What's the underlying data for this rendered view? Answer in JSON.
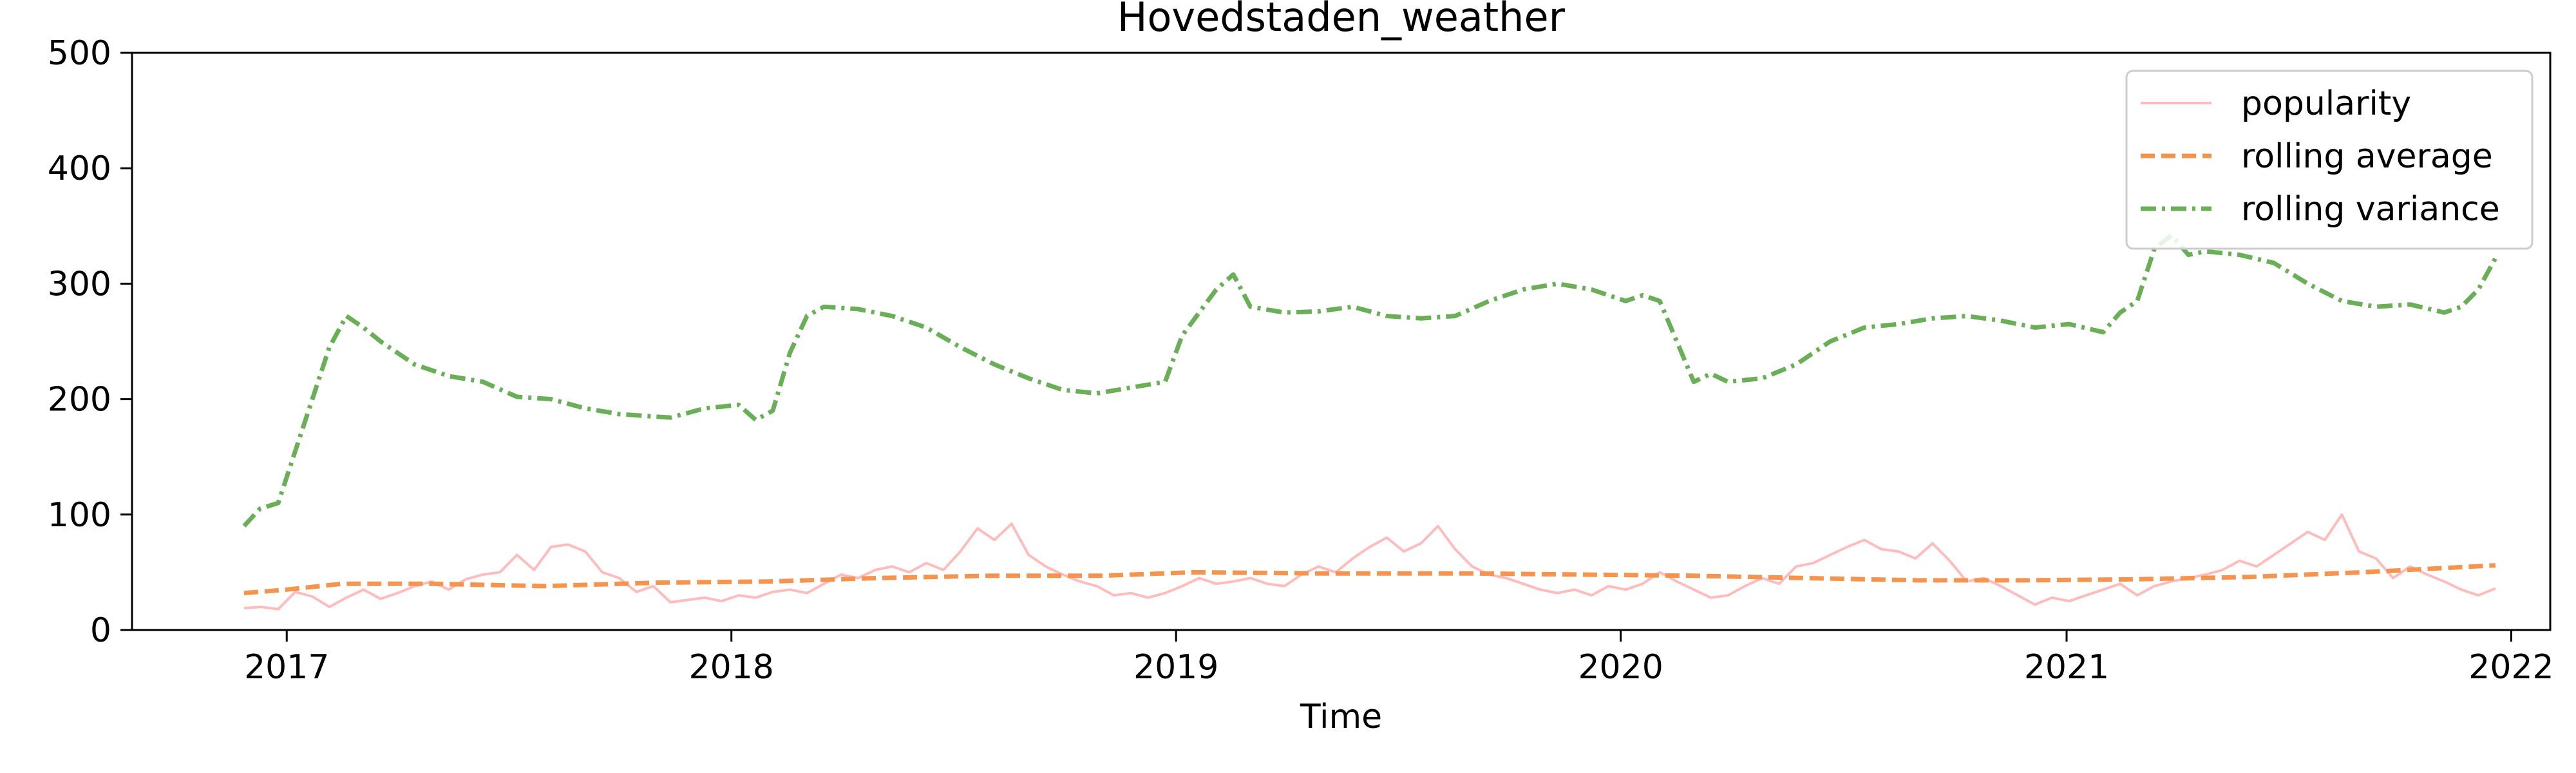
{
  "chart_data": {
    "type": "line",
    "title": "Hovedstaden_weather",
    "xlabel": "Time",
    "ylabel": "",
    "xlim": [
      "2016-08-27",
      "2022-02-02"
    ],
    "ylim": [
      0,
      500
    ],
    "x_ticks": [
      "2017-01-01",
      "2018-01-01",
      "2019-01-01",
      "2020-01-01",
      "2021-01-01",
      "2022-01-01"
    ],
    "x_tick_labels": [
      "2017",
      "2018",
      "2019",
      "2020",
      "2021",
      "2022"
    ],
    "y_ticks": [
      0,
      100,
      200,
      300,
      400,
      500
    ],
    "y_tick_labels": [
      "0",
      "100",
      "200",
      "300",
      "400",
      "500"
    ],
    "grid": false,
    "legend_position": "top-right",
    "series": [
      {
        "name": "popularity",
        "color": "#ffbcbc",
        "style": "solid",
        "points": [
          [
            "2016-11-27",
            19
          ],
          [
            "2016-12-11",
            20
          ],
          [
            "2016-12-25",
            18
          ],
          [
            "2017-01-08",
            33
          ],
          [
            "2017-01-22",
            29
          ],
          [
            "2017-02-05",
            20
          ],
          [
            "2017-02-19",
            28
          ],
          [
            "2017-03-05",
            35
          ],
          [
            "2017-03-19",
            27
          ],
          [
            "2017-04-02",
            32
          ],
          [
            "2017-04-16",
            38
          ],
          [
            "2017-04-30",
            42
          ],
          [
            "2017-05-14",
            35
          ],
          [
            "2017-05-28",
            44
          ],
          [
            "2017-06-11",
            48
          ],
          [
            "2017-06-25",
            50
          ],
          [
            "2017-07-09",
            65
          ],
          [
            "2017-07-23",
            52
          ],
          [
            "2017-08-06",
            72
          ],
          [
            "2017-08-20",
            74
          ],
          [
            "2017-09-03",
            68
          ],
          [
            "2017-09-17",
            50
          ],
          [
            "2017-10-01",
            45
          ],
          [
            "2017-10-15",
            33
          ],
          [
            "2017-10-29",
            38
          ],
          [
            "2017-11-12",
            24
          ],
          [
            "2017-11-26",
            26
          ],
          [
            "2017-12-10",
            28
          ],
          [
            "2017-12-24",
            25
          ],
          [
            "2018-01-07",
            30
          ],
          [
            "2018-01-21",
            28
          ],
          [
            "2018-02-04",
            33
          ],
          [
            "2018-02-18",
            35
          ],
          [
            "2018-03-04",
            32
          ],
          [
            "2018-03-18",
            40
          ],
          [
            "2018-04-01",
            48
          ],
          [
            "2018-04-15",
            45
          ],
          [
            "2018-04-29",
            52
          ],
          [
            "2018-05-13",
            55
          ],
          [
            "2018-05-27",
            50
          ],
          [
            "2018-06-10",
            58
          ],
          [
            "2018-06-24",
            52
          ],
          [
            "2018-07-08",
            68
          ],
          [
            "2018-07-22",
            88
          ],
          [
            "2018-08-05",
            78
          ],
          [
            "2018-08-19",
            92
          ],
          [
            "2018-09-02",
            65
          ],
          [
            "2018-09-16",
            55
          ],
          [
            "2018-09-30",
            48
          ],
          [
            "2018-10-14",
            42
          ],
          [
            "2018-10-28",
            38
          ],
          [
            "2018-11-11",
            30
          ],
          [
            "2018-11-25",
            32
          ],
          [
            "2018-12-09",
            28
          ],
          [
            "2018-12-23",
            32
          ],
          [
            "2019-01-06",
            38
          ],
          [
            "2019-01-20",
            45
          ],
          [
            "2019-02-03",
            40
          ],
          [
            "2019-02-17",
            42
          ],
          [
            "2019-03-03",
            45
          ],
          [
            "2019-03-17",
            40
          ],
          [
            "2019-03-31",
            38
          ],
          [
            "2019-04-14",
            48
          ],
          [
            "2019-04-28",
            55
          ],
          [
            "2019-05-12",
            50
          ],
          [
            "2019-05-26",
            62
          ],
          [
            "2019-06-09",
            72
          ],
          [
            "2019-06-23",
            80
          ],
          [
            "2019-07-07",
            68
          ],
          [
            "2019-07-21",
            75
          ],
          [
            "2019-08-04",
            90
          ],
          [
            "2019-08-18",
            70
          ],
          [
            "2019-09-01",
            55
          ],
          [
            "2019-09-15",
            48
          ],
          [
            "2019-09-29",
            45
          ],
          [
            "2019-10-13",
            40
          ],
          [
            "2019-10-27",
            35
          ],
          [
            "2019-11-10",
            32
          ],
          [
            "2019-11-24",
            35
          ],
          [
            "2019-12-08",
            30
          ],
          [
            "2019-12-22",
            38
          ],
          [
            "2020-01-05",
            35
          ],
          [
            "2020-01-19",
            40
          ],
          [
            "2020-02-02",
            50
          ],
          [
            "2020-02-16",
            42
          ],
          [
            "2020-03-01",
            35
          ],
          [
            "2020-03-15",
            28
          ],
          [
            "2020-03-29",
            30
          ],
          [
            "2020-04-12",
            38
          ],
          [
            "2020-04-26",
            45
          ],
          [
            "2020-05-10",
            40
          ],
          [
            "2020-05-24",
            55
          ],
          [
            "2020-06-07",
            58
          ],
          [
            "2020-06-21",
            65
          ],
          [
            "2020-07-05",
            72
          ],
          [
            "2020-07-19",
            78
          ],
          [
            "2020-08-02",
            70
          ],
          [
            "2020-08-16",
            68
          ],
          [
            "2020-08-30",
            62
          ],
          [
            "2020-09-13",
            75
          ],
          [
            "2020-09-27",
            60
          ],
          [
            "2020-10-11",
            42
          ],
          [
            "2020-10-25",
            45
          ],
          [
            "2020-11-08",
            38
          ],
          [
            "2020-11-22",
            30
          ],
          [
            "2020-12-06",
            22
          ],
          [
            "2020-12-20",
            28
          ],
          [
            "2021-01-03",
            25
          ],
          [
            "2021-01-17",
            30
          ],
          [
            "2021-01-31",
            35
          ],
          [
            "2021-02-14",
            40
          ],
          [
            "2021-02-28",
            30
          ],
          [
            "2021-03-14",
            38
          ],
          [
            "2021-03-28",
            42
          ],
          [
            "2021-04-11",
            45
          ],
          [
            "2021-04-25",
            48
          ],
          [
            "2021-05-09",
            52
          ],
          [
            "2021-05-23",
            60
          ],
          [
            "2021-06-06",
            55
          ],
          [
            "2021-06-20",
            65
          ],
          [
            "2021-07-04",
            75
          ],
          [
            "2021-07-18",
            85
          ],
          [
            "2021-08-01",
            78
          ],
          [
            "2021-08-15",
            100
          ],
          [
            "2021-08-29",
            68
          ],
          [
            "2021-09-12",
            62
          ],
          [
            "2021-09-26",
            45
          ],
          [
            "2021-10-10",
            55
          ],
          [
            "2021-10-24",
            48
          ],
          [
            "2021-11-07",
            42
          ],
          [
            "2021-11-21",
            35
          ],
          [
            "2021-12-05",
            30
          ],
          [
            "2021-12-19",
            36
          ]
        ]
      },
      {
        "name": "rolling average",
        "color": "#f5944e",
        "style": "dashed",
        "points": [
          [
            "2016-11-27",
            32
          ],
          [
            "2017-01-01",
            35
          ],
          [
            "2017-02-15",
            40
          ],
          [
            "2017-05-01",
            40
          ],
          [
            "2017-08-01",
            38
          ],
          [
            "2017-11-01",
            41
          ],
          [
            "2018-02-01",
            42
          ],
          [
            "2018-05-01",
            45
          ],
          [
            "2018-08-01",
            47
          ],
          [
            "2018-11-01",
            47
          ],
          [
            "2019-01-15",
            50
          ],
          [
            "2019-05-01",
            49
          ],
          [
            "2019-09-01",
            49
          ],
          [
            "2019-12-01",
            48
          ],
          [
            "2020-03-01",
            47
          ],
          [
            "2020-06-01",
            45
          ],
          [
            "2020-09-01",
            43
          ],
          [
            "2020-12-01",
            43
          ],
          [
            "2021-03-01",
            44
          ],
          [
            "2021-06-01",
            46
          ],
          [
            "2021-09-01",
            50
          ],
          [
            "2021-12-19",
            56
          ]
        ]
      },
      {
        "name": "rolling variance",
        "color": "#6aaf57",
        "style": "dashdot",
        "points": [
          [
            "2016-11-27",
            90
          ],
          [
            "2016-12-10",
            105
          ],
          [
            "2016-12-25",
            110
          ],
          [
            "2017-01-08",
            155
          ],
          [
            "2017-01-22",
            200
          ],
          [
            "2017-02-05",
            245
          ],
          [
            "2017-02-19",
            272
          ],
          [
            "2017-03-05",
            262
          ],
          [
            "2017-03-19",
            250
          ],
          [
            "2017-04-02",
            240
          ],
          [
            "2017-04-16",
            230
          ],
          [
            "2017-05-14",
            220
          ],
          [
            "2017-06-11",
            215
          ],
          [
            "2017-07-09",
            202
          ],
          [
            "2017-08-06",
            200
          ],
          [
            "2017-09-03",
            192
          ],
          [
            "2017-10-01",
            187
          ],
          [
            "2017-11-12",
            184
          ],
          [
            "2017-12-10",
            192
          ],
          [
            "2018-01-07",
            195
          ],
          [
            "2018-01-21",
            182
          ],
          [
            "2018-02-04",
            190
          ],
          [
            "2018-02-18",
            240
          ],
          [
            "2018-03-04",
            272
          ],
          [
            "2018-03-18",
            280
          ],
          [
            "2018-04-15",
            278
          ],
          [
            "2018-05-13",
            272
          ],
          [
            "2018-06-10",
            262
          ],
          [
            "2018-07-08",
            245
          ],
          [
            "2018-08-05",
            230
          ],
          [
            "2018-09-02",
            218
          ],
          [
            "2018-09-30",
            208
          ],
          [
            "2018-10-28",
            205
          ],
          [
            "2018-11-25",
            210
          ],
          [
            "2018-12-23",
            215
          ],
          [
            "2019-01-06",
            255
          ],
          [
            "2019-01-20",
            275
          ],
          [
            "2019-02-03",
            295
          ],
          [
            "2019-02-17",
            308
          ],
          [
            "2019-03-03",
            280
          ],
          [
            "2019-03-31",
            275
          ],
          [
            "2019-04-28",
            276
          ],
          [
            "2019-05-26",
            280
          ],
          [
            "2019-06-23",
            272
          ],
          [
            "2019-07-21",
            270
          ],
          [
            "2019-08-18",
            272
          ],
          [
            "2019-09-15",
            285
          ],
          [
            "2019-10-13",
            295
          ],
          [
            "2019-11-10",
            300
          ],
          [
            "2019-12-08",
            295
          ],
          [
            "2020-01-05",
            285
          ],
          [
            "2020-01-19",
            290
          ],
          [
            "2020-02-02",
            285
          ],
          [
            "2020-02-16",
            250
          ],
          [
            "2020-03-01",
            215
          ],
          [
            "2020-03-15",
            222
          ],
          [
            "2020-03-29",
            215
          ],
          [
            "2020-04-26",
            218
          ],
          [
            "2020-05-24",
            230
          ],
          [
            "2020-06-21",
            250
          ],
          [
            "2020-07-19",
            262
          ],
          [
            "2020-08-16",
            265
          ],
          [
            "2020-09-13",
            270
          ],
          [
            "2020-10-11",
            272
          ],
          [
            "2020-11-08",
            268
          ],
          [
            "2020-12-06",
            262
          ],
          [
            "2021-01-03",
            265
          ],
          [
            "2021-01-31",
            258
          ],
          [
            "2021-02-14",
            275
          ],
          [
            "2021-02-28",
            285
          ],
          [
            "2021-03-14",
            330
          ],
          [
            "2021-03-28",
            342
          ],
          [
            "2021-04-11",
            325
          ],
          [
            "2021-04-25",
            328
          ],
          [
            "2021-05-23",
            325
          ],
          [
            "2021-06-20",
            318
          ],
          [
            "2021-07-18",
            300
          ],
          [
            "2021-08-15",
            285
          ],
          [
            "2021-09-12",
            280
          ],
          [
            "2021-10-10",
            282
          ],
          [
            "2021-11-07",
            275
          ],
          [
            "2021-11-21",
            280
          ],
          [
            "2021-12-05",
            295
          ],
          [
            "2021-12-19",
            322
          ]
        ]
      }
    ]
  }
}
